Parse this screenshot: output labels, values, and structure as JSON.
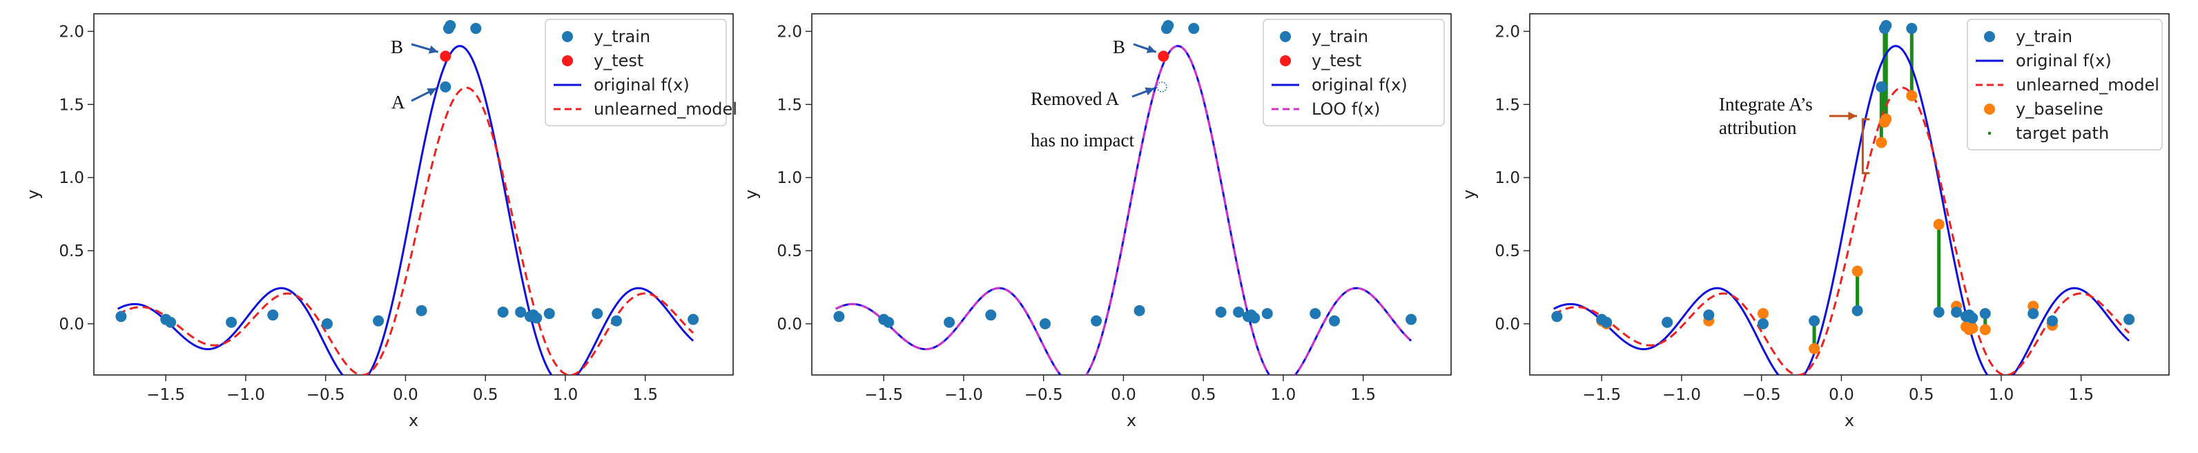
{
  "colors": {
    "train": "#1f77b4",
    "test": "#ff1a1a",
    "original": "#1010dd",
    "unlearned": "#ee2222",
    "loo": "#cc33cc",
    "baseline": "#ff7f0e",
    "target_path": "#1a8a1a",
    "annotation_arrow": "#2a5caa",
    "integrate_arrow": "#c0501a"
  },
  "chart_data": [
    {
      "type": "scatter",
      "title": "",
      "xlabel": "x",
      "ylabel": "y",
      "xlim": [
        -1.95,
        2.05
      ],
      "ylim": [
        -0.35,
        2.12
      ],
      "xticks": [
        "−1.5",
        "−1.0",
        "−0.5",
        "0.0",
        "0.5",
        "1.0",
        "1.5"
      ],
      "xtick_values": [
        -1.5,
        -1.0,
        -0.5,
        0.0,
        0.5,
        1.0,
        1.5
      ],
      "yticks": [
        "0.0",
        "0.5",
        "1.0",
        "1.5",
        "2.0"
      ],
      "ytick_values": [
        0.0,
        0.5,
        1.0,
        1.5,
        2.0
      ],
      "legend": [
        "y_train",
        "y_test",
        "original f(x)",
        "unlearned_model"
      ],
      "series": {
        "y_train": {
          "x": [
            -1.78,
            -1.5,
            -1.47,
            -1.09,
            -0.83,
            -0.49,
            -0.17,
            0.1,
            0.25,
            0.27,
            0.28,
            0.44,
            0.61,
            0.72,
            0.78,
            0.8,
            0.82,
            0.9,
            1.2,
            1.32,
            1.8
          ],
          "y": [
            0.05,
            0.03,
            0.01,
            0.01,
            0.06,
            0.0,
            0.02,
            0.09,
            1.62,
            2.02,
            2.04,
            2.02,
            0.08,
            0.08,
            0.05,
            0.06,
            0.04,
            0.07,
            0.07,
            0.02,
            0.03
          ]
        },
        "y_test": {
          "x": [
            0.25
          ],
          "y": [
            1.83
          ]
        },
        "original f(x)": {
          "formula": "sinc_peak",
          "shift": 0.0,
          "amp": 1.0
        },
        "unlearned_model": {
          "formula": "sinc_peak",
          "shift": 0.04,
          "amp": 0.85
        }
      },
      "annotations": [
        {
          "text": "B",
          "point_x": 0.23,
          "point_y": 1.84
        },
        {
          "text": "A",
          "point_x": 0.22,
          "point_y": 1.62
        }
      ]
    },
    {
      "type": "scatter",
      "title": "",
      "xlabel": "x",
      "ylabel": "y",
      "xlim": [
        -1.95,
        2.05
      ],
      "ylim": [
        -0.35,
        2.12
      ],
      "xticks": [
        "−1.5",
        "−1.0",
        "−0.5",
        "0.0",
        "0.5",
        "1.0",
        "1.5"
      ],
      "xtick_values": [
        -1.5,
        -1.0,
        -0.5,
        0.0,
        0.5,
        1.0,
        1.5
      ],
      "yticks": [
        "0.0",
        "0.5",
        "1.0",
        "1.5",
        "2.0"
      ],
      "ytick_values": [
        0.0,
        0.5,
        1.0,
        1.5,
        2.0
      ],
      "legend": [
        "y_train",
        "y_test",
        "original f(x)",
        "LOO f(x)"
      ],
      "series": {
        "y_train": {
          "x": [
            -1.78,
            -1.5,
            -1.47,
            -1.09,
            -0.83,
            -0.49,
            -0.17,
            0.1,
            0.27,
            0.28,
            0.44,
            0.61,
            0.72,
            0.78,
            0.8,
            0.82,
            0.9,
            1.2,
            1.32,
            1.8
          ],
          "y": [
            0.05,
            0.03,
            0.01,
            0.01,
            0.06,
            0.0,
            0.02,
            0.09,
            2.02,
            2.04,
            2.02,
            0.08,
            0.08,
            0.05,
            0.06,
            0.04,
            0.07,
            0.07,
            0.02,
            0.03
          ]
        },
        "y_test": {
          "x": [
            0.25
          ],
          "y": [
            1.83
          ]
        },
        "removed_point": {
          "x": [
            0.24
          ],
          "y": [
            1.62
          ]
        },
        "original f(x)": {
          "formula": "sinc_peak",
          "shift": 0.0,
          "amp": 1.0
        },
        "LOO f(x)": {
          "formula": "sinc_peak",
          "shift": 0.0,
          "amp": 1.0
        }
      },
      "annotations": [
        {
          "text": "B",
          "point_x": 0.23,
          "point_y": 1.84
        },
        {
          "text": "Removed A",
          "point_x": 0.22,
          "point_y": 1.62
        },
        {
          "text": "has no impact"
        }
      ]
    },
    {
      "type": "scatter",
      "title": "",
      "xlabel": "x",
      "ylabel": "y",
      "xlim": [
        -1.95,
        2.05
      ],
      "ylim": [
        -0.35,
        2.12
      ],
      "xticks": [
        "−1.5",
        "−1.0",
        "−0.5",
        "0.0",
        "0.5",
        "1.0",
        "1.5"
      ],
      "xtick_values": [
        -1.5,
        -1.0,
        -0.5,
        0.0,
        0.5,
        1.0,
        1.5
      ],
      "yticks": [
        "0.0",
        "0.5",
        "1.0",
        "1.5",
        "2.0"
      ],
      "ytick_values": [
        0.0,
        0.5,
        1.0,
        1.5,
        2.0
      ],
      "legend": [
        "y_train",
        "original f(x)",
        "unlearned_model",
        "y_baseline",
        "target path"
      ],
      "series": {
        "y_train": {
          "x": [
            -1.78,
            -1.5,
            -1.47,
            -1.09,
            -0.83,
            -0.49,
            -0.17,
            0.1,
            0.25,
            0.27,
            0.28,
            0.44,
            0.61,
            0.72,
            0.78,
            0.8,
            0.82,
            0.9,
            1.2,
            1.32,
            1.8
          ],
          "y": [
            0.05,
            0.03,
            0.01,
            0.01,
            0.06,
            0.0,
            0.02,
            0.09,
            1.62,
            2.02,
            2.04,
            2.02,
            0.08,
            0.08,
            0.05,
            0.06,
            0.04,
            0.07,
            0.07,
            0.02,
            0.03
          ]
        },
        "y_baseline": {
          "x": [
            -1.78,
            -1.5,
            -1.47,
            -1.09,
            -0.83,
            -0.49,
            -0.17,
            0.1,
            0.25,
            0.27,
            0.28,
            0.44,
            0.61,
            0.72,
            0.78,
            0.8,
            0.82,
            0.9,
            1.2,
            1.32,
            1.8
          ],
          "y": [
            0.05,
            0.02,
            0.0,
            0.01,
            0.02,
            0.07,
            -0.17,
            0.36,
            1.24,
            1.38,
            1.4,
            1.56,
            0.68,
            0.12,
            -0.02,
            -0.04,
            -0.03,
            -0.04,
            0.12,
            -0.01,
            0.03
          ]
        },
        "original f(x)": {
          "formula": "sinc_peak",
          "shift": 0.0,
          "amp": 1.0
        },
        "unlearned_model": {
          "formula": "sinc_peak",
          "shift": 0.04,
          "amp": 0.85
        }
      },
      "annotations": [
        {
          "text": "Integrate A’s",
          "point_x": 0.22,
          "point_y": 1.4
        },
        {
          "text": "attribution"
        }
      ]
    }
  ]
}
